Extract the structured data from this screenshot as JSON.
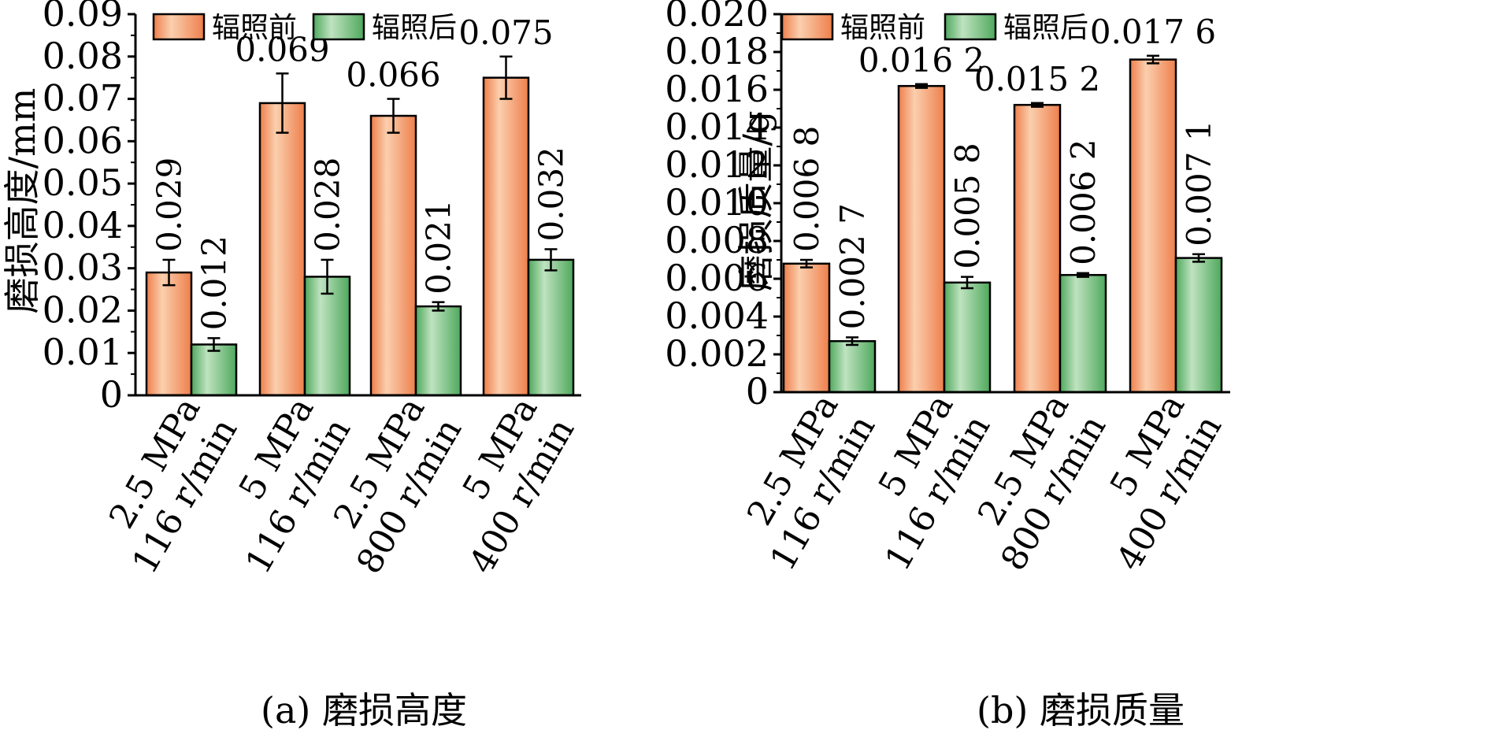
{
  "colors": {
    "before_light": "#fbcfae",
    "before_dark": "#ee7f4c",
    "after_light": "#bfe3c0",
    "after_dark": "#4fa85d",
    "axis": "#000000"
  },
  "chart_data": [
    {
      "type": "bar",
      "caption": "(a) 磨损高度",
      "ylabel": "磨损高度/mm",
      "xlabel": "",
      "ylim": [
        0,
        0.09
      ],
      "yticks": [
        0,
        0.01,
        0.02,
        0.03,
        0.04,
        0.05,
        0.06,
        0.07,
        0.08,
        0.09
      ],
      "ytick_labels": [
        "0",
        "0.01",
        "0.02",
        "0.03",
        "0.04",
        "0.05",
        "0.06",
        "0.07",
        "0.08",
        "0.09"
      ],
      "categories": [
        [
          "2.5 MPa",
          "116 r/min"
        ],
        [
          "5 MPa",
          "116 r/min"
        ],
        [
          "2.5 MPa",
          "800 r/min"
        ],
        [
          "5 MPa",
          "400 r/min"
        ]
      ],
      "legend": {
        "position": "top-left",
        "entries": [
          "辐照前",
          "辐照后"
        ]
      },
      "series": [
        {
          "name": "辐照前",
          "values": [
            0.029,
            0.069,
            0.066,
            0.075
          ],
          "errors": [
            0.003,
            0.007,
            0.004,
            0.005
          ],
          "labels": [
            "0.029",
            "0.069",
            "0.066",
            "0.075"
          ]
        },
        {
          "name": "辐照后",
          "values": [
            0.012,
            0.028,
            0.021,
            0.032
          ],
          "errors": [
            0.0015,
            0.004,
            0.001,
            0.0025
          ],
          "labels": [
            "0.012",
            "0.028",
            "0.021",
            "0.032"
          ]
        }
      ]
    },
    {
      "type": "bar",
      "caption": "(b) 磨损质量",
      "ylabel": "磨损质量/g",
      "xlabel": "",
      "ylim": [
        0,
        0.02
      ],
      "yticks": [
        0,
        0.002,
        0.004,
        0.006,
        0.008,
        0.01,
        0.012,
        0.014,
        0.016,
        0.018,
        0.02
      ],
      "ytick_labels": [
        "0",
        "0.002",
        "0.004",
        "0.006",
        "0.008",
        "0.010",
        "0.012",
        "0.014",
        "0.016",
        "0.018",
        "0.020"
      ],
      "categories": [
        [
          "2.5 MPa",
          "116 r/min"
        ],
        [
          "5 MPa",
          "116 r/min"
        ],
        [
          "2.5 MPa",
          "800 r/min"
        ],
        [
          "5 MPa",
          "400 r/min"
        ]
      ],
      "legend": {
        "position": "top-left",
        "entries": [
          "辐照前",
          "辐照后"
        ]
      },
      "series": [
        {
          "name": "辐照前",
          "values": [
            0.0068,
            0.0162,
            0.0152,
            0.0176
          ],
          "errors": [
            0.0002,
            0.0001,
            0.0001,
            0.0002
          ],
          "labels": [
            "0.006 8",
            "0.016 2",
            "0.015 2",
            "0.017 6"
          ]
        },
        {
          "name": "辐照后",
          "values": [
            0.0027,
            0.0058,
            0.0062,
            0.0071
          ],
          "errors": [
            0.0002,
            0.0003,
            0.0001,
            0.0002
          ],
          "labels": [
            "0.002 7",
            "0.005 8",
            "0.006 2",
            "0.007 1"
          ]
        }
      ]
    }
  ]
}
